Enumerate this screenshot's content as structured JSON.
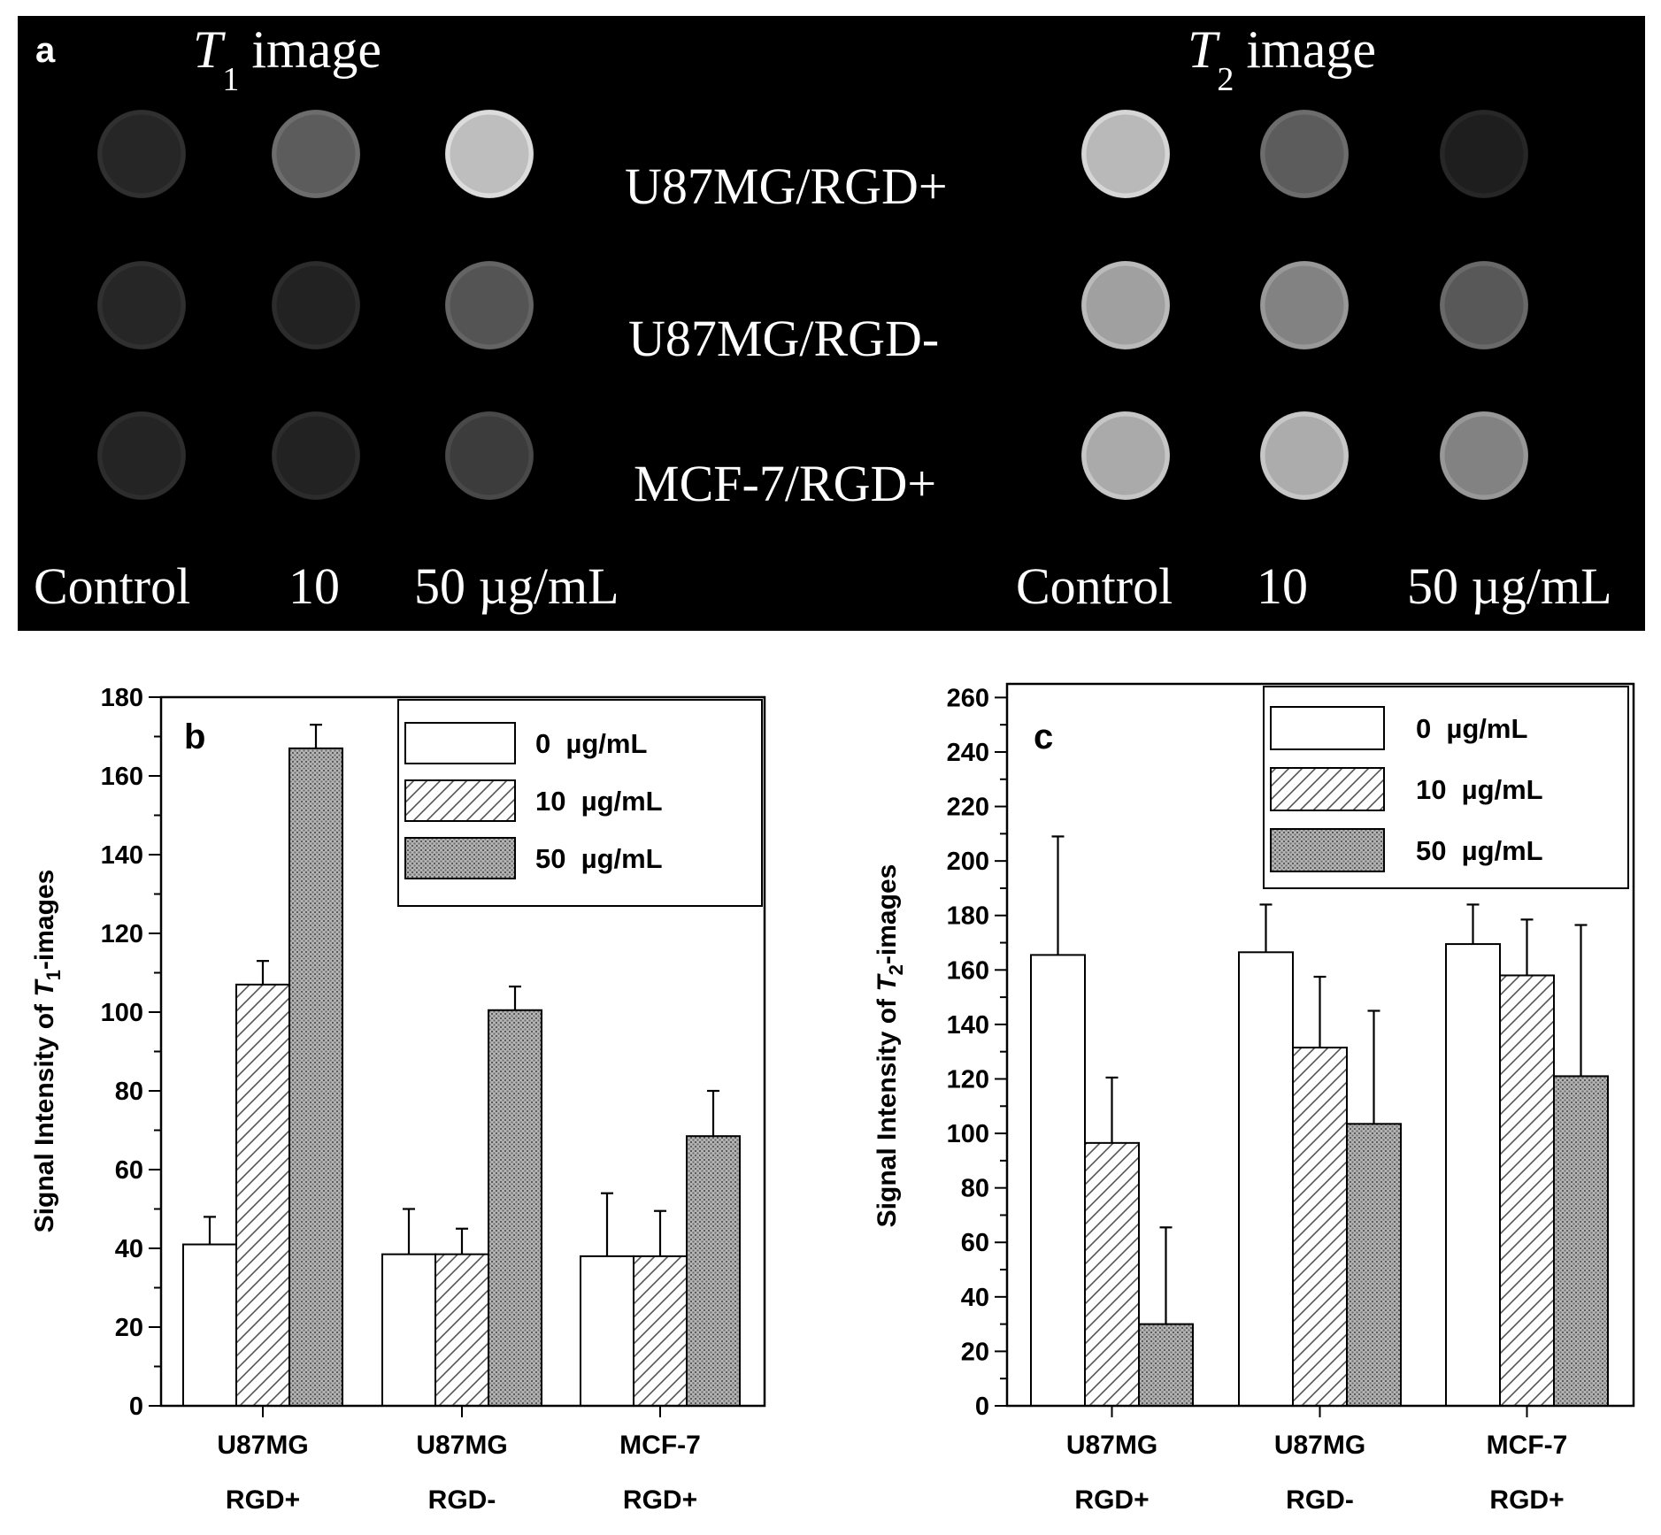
{
  "panel_a": {
    "label": "a",
    "t1_title": {
      "letter": "T",
      "sub": "1",
      "word": "image"
    },
    "t2_title": {
      "letter": "T",
      "sub": "2",
      "word": "image"
    },
    "rows": [
      "U87MG/RGD+",
      "U87MG/RGD-",
      "MCF-7/RGD+"
    ],
    "col_labels": [
      "Control",
      "10",
      "50 µg/mL"
    ],
    "t1_gray": [
      [
        38,
        92,
        190
      ],
      [
        38,
        34,
        84
      ],
      [
        36,
        34,
        60
      ]
    ],
    "t2_gray": [
      [
        185,
        92,
        30
      ],
      [
        160,
        130,
        88
      ],
      [
        170,
        172,
        130
      ]
    ],
    "background": "#000000"
  },
  "chart_data": [
    {
      "id": "b",
      "type": "bar",
      "panel_label": "b",
      "categories": [
        [
          "U87MG",
          "RGD+"
        ],
        [
          "U87MG",
          "RGD-"
        ],
        [
          "MCF-7",
          "RGD+"
        ]
      ],
      "ylabel": {
        "prefix": "Signal Intensity of ",
        "letter": "T",
        "sub": "1",
        "suffix": "-images"
      },
      "ylim": [
        0,
        180
      ],
      "yticks": [
        0,
        20,
        40,
        60,
        80,
        100,
        120,
        140,
        160,
        180
      ],
      "minor_step": 10,
      "series": [
        {
          "name": "0  µg/mL",
          "pattern": "open",
          "values": [
            41,
            38.5,
            38
          ],
          "errors": [
            7,
            11.5,
            16
          ]
        },
        {
          "name": "10  µg/mL",
          "pattern": "hatch",
          "values": [
            107,
            38.5,
            38
          ],
          "errors": [
            6,
            6.5,
            11.5
          ]
        },
        {
          "name": "50  µg/mL",
          "pattern": "dots",
          "values": [
            167,
            100.5,
            68.5
          ],
          "errors": [
            6,
            6,
            11.5
          ]
        }
      ],
      "legend_position": "top-right"
    },
    {
      "id": "c",
      "type": "bar",
      "panel_label": "c",
      "categories": [
        [
          "U87MG",
          "RGD+"
        ],
        [
          "U87MG",
          "RGD-"
        ],
        [
          "MCF-7",
          "RGD+"
        ]
      ],
      "ylabel": {
        "prefix": "Signal Intensity of ",
        "letter": "T",
        "sub": "2",
        "suffix": "-images"
      },
      "ylim": [
        0,
        265
      ],
      "yticks": [
        0,
        20,
        40,
        60,
        80,
        100,
        120,
        140,
        160,
        180,
        200,
        220,
        240,
        260
      ],
      "minor_step": 10,
      "series": [
        {
          "name": "0  µg/mL",
          "pattern": "open",
          "values": [
            165.5,
            166.5,
            169.5
          ],
          "errors": [
            43.5,
            17.5,
            14.5
          ]
        },
        {
          "name": "10  µg/mL",
          "pattern": "hatch",
          "values": [
            96.5,
            131.5,
            158
          ],
          "errors": [
            24,
            26,
            20.5
          ]
        },
        {
          "name": "50  µg/mL",
          "pattern": "dots",
          "values": [
            30,
            103.5,
            121
          ],
          "errors": [
            35.5,
            41.5,
            55.5
          ]
        }
      ],
      "legend_position": "top-right"
    }
  ]
}
